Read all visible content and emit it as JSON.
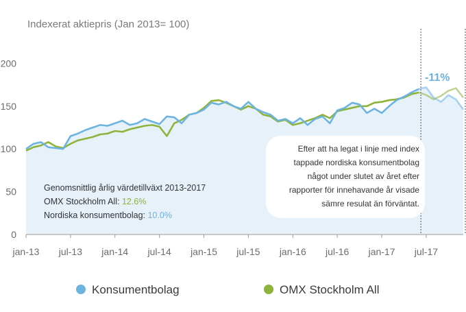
{
  "chart_data": {
    "type": "line",
    "title": "Indexerat aktiepris (Jan 2013= 100)",
    "x_ticks": [
      "jan-13",
      "jul-13",
      "jan-14",
      "jul-14",
      "jan-15",
      "jul-15",
      "jan-16",
      "jul-16",
      "jan-17",
      "jul-17"
    ],
    "xlim": [
      "2013-01",
      "2017-12"
    ],
    "ylim": [
      0,
      250
    ],
    "y_ticks": [
      0,
      50,
      100,
      150,
      200
    ],
    "grid": false,
    "legend_position": "bottom",
    "series": [
      {
        "name": "Konsumentbolag",
        "color": "#6db3e0",
        "x": [
          "2013-01",
          "2013-02",
          "2013-03",
          "2013-04",
          "2013-05",
          "2013-06",
          "2013-07",
          "2013-08",
          "2013-09",
          "2013-10",
          "2013-11",
          "2013-12",
          "2014-01",
          "2014-02",
          "2014-03",
          "2014-04",
          "2014-05",
          "2014-06",
          "2014-07",
          "2014-08",
          "2014-09",
          "2014-10",
          "2014-11",
          "2014-12",
          "2015-01",
          "2015-02",
          "2015-03",
          "2015-04",
          "2015-05",
          "2015-06",
          "2015-07",
          "2015-08",
          "2015-09",
          "2015-10",
          "2015-11",
          "2015-12",
          "2016-01",
          "2016-02",
          "2016-03",
          "2016-04",
          "2016-05",
          "2016-06",
          "2016-07",
          "2016-08",
          "2016-09",
          "2016-10",
          "2016-11",
          "2016-12",
          "2017-01",
          "2017-02",
          "2017-03",
          "2017-04",
          "2017-05",
          "2017-06",
          "2017-07",
          "2017-08",
          "2017-09",
          "2017-10",
          "2017-11",
          "2017-12"
        ],
        "values": [
          100,
          106,
          108,
          102,
          101,
          100,
          115,
          118,
          122,
          125,
          128,
          127,
          130,
          133,
          128,
          130,
          135,
          132,
          129,
          138,
          137,
          130,
          140,
          142,
          146,
          154,
          152,
          155,
          150,
          147,
          155,
          147,
          143,
          140,
          133,
          135,
          130,
          136,
          128,
          135,
          138,
          130,
          145,
          148,
          154,
          152,
          142,
          147,
          142,
          150,
          157,
          161,
          166,
          170,
          172,
          160,
          155,
          163,
          158,
          146
        ]
      },
      {
        "name": "OMX Stockholm All",
        "color": "#8db33a",
        "x": [
          "2013-01",
          "2013-02",
          "2013-03",
          "2013-04",
          "2013-05",
          "2013-06",
          "2013-07",
          "2013-08",
          "2013-09",
          "2013-10",
          "2013-11",
          "2013-12",
          "2014-01",
          "2014-02",
          "2014-03",
          "2014-04",
          "2014-05",
          "2014-06",
          "2014-07",
          "2014-08",
          "2014-09",
          "2014-10",
          "2014-11",
          "2014-12",
          "2015-01",
          "2015-02",
          "2015-03",
          "2015-04",
          "2015-05",
          "2015-06",
          "2015-07",
          "2015-08",
          "2015-09",
          "2015-10",
          "2015-11",
          "2015-12",
          "2016-01",
          "2016-02",
          "2016-03",
          "2016-04",
          "2016-05",
          "2016-06",
          "2016-07",
          "2016-08",
          "2016-09",
          "2016-10",
          "2016-11",
          "2016-12",
          "2017-01",
          "2017-02",
          "2017-03",
          "2017-04",
          "2017-05",
          "2017-06",
          "2017-07",
          "2017-08",
          "2017-09",
          "2017-10",
          "2017-11",
          "2017-12"
        ],
        "values": [
          98,
          102,
          104,
          108,
          103,
          101,
          106,
          110,
          112,
          114,
          117,
          118,
          121,
          120,
          123,
          125,
          127,
          128,
          126,
          115,
          130,
          134,
          140,
          142,
          148,
          156,
          157,
          154,
          150,
          146,
          150,
          147,
          140,
          138,
          132,
          134,
          128,
          130,
          133,
          136,
          140,
          136,
          144,
          146,
          148,
          150,
          150,
          154,
          155,
          157,
          158,
          160,
          164,
          166,
          163,
          158,
          162,
          168,
          171,
          160
        ]
      }
    ],
    "annotations": {
      "change_label": "-11%",
      "note_lines": [
        "Efter att ha legat i linje med index",
        "tappade nordiska konsumentbolag",
        "något under slutet av året efter",
        "rapporter för innehavande år visade",
        "sämre resulat än förväntat."
      ],
      "growth_title": "Genomsnittlig årlig värdetillväxt 2013-2017",
      "growth_omx_label": "OMX Stockholm All: ",
      "growth_omx_value": "12.6%",
      "growth_cons_label": "Nordiska konsumentbolag: ",
      "growth_cons_value": "10.0%"
    }
  }
}
